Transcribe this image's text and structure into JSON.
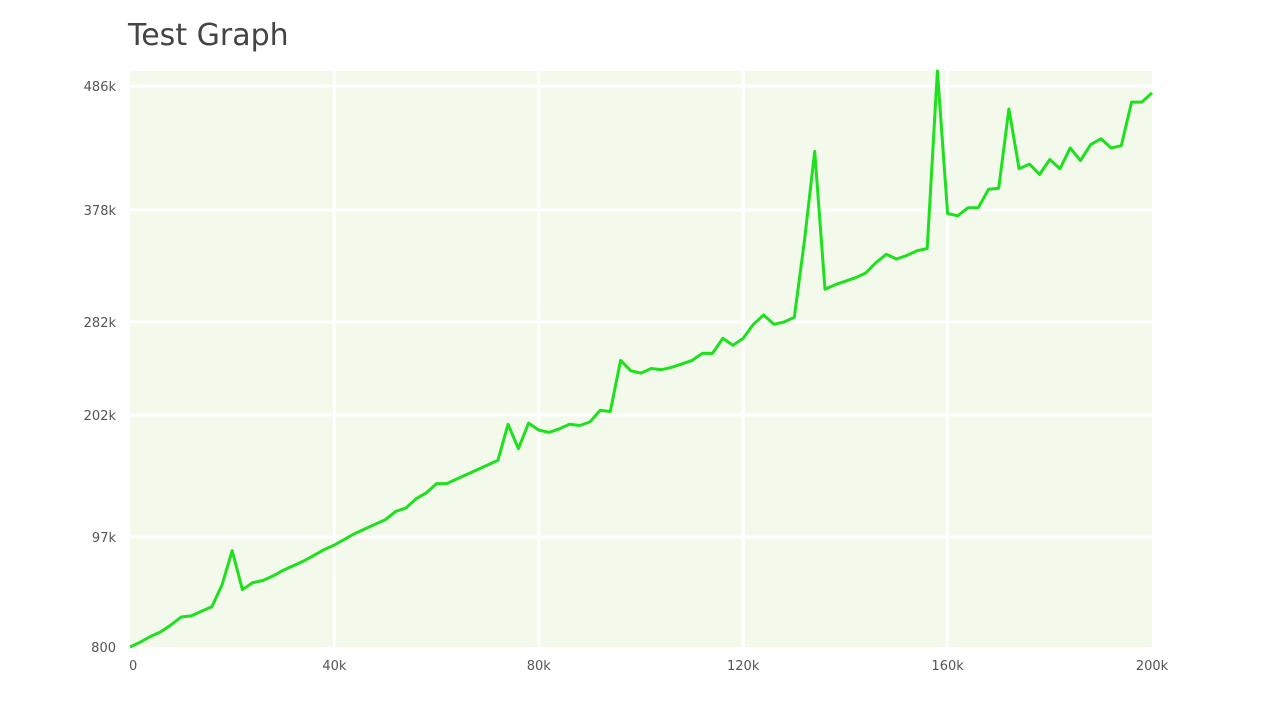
{
  "chart_data": {
    "type": "line",
    "title": "Test Graph",
    "xlabel": "",
    "ylabel": "",
    "xlim": [
      0,
      200000
    ],
    "ylim": [
      800,
      500000
    ],
    "x_ticks": [
      {
        "value": 0,
        "label": "0"
      },
      {
        "value": 40000,
        "label": "40k"
      },
      {
        "value": 80000,
        "label": "80k"
      },
      {
        "value": 120000,
        "label": "120k"
      },
      {
        "value": 160000,
        "label": "160k"
      },
      {
        "value": 200000,
        "label": "200k"
      }
    ],
    "y_ticks": [
      {
        "value": 800,
        "label": "800"
      },
      {
        "value": 97000,
        "label": "97k"
      },
      {
        "value": 202000,
        "label": "202k"
      },
      {
        "value": 282000,
        "label": "282k"
      },
      {
        "value": 378000,
        "label": "378k"
      },
      {
        "value": 486000,
        "label": "486k"
      }
    ],
    "grid": true,
    "colors": {
      "plot_background": "#f3faec",
      "grid": "#ffffff",
      "line": "#1ee01e"
    },
    "series": [
      {
        "x": [
          0,
          2000,
          4000,
          6000,
          8000,
          10000,
          12000,
          14000,
          16000,
          18000,
          20000,
          22000,
          24000,
          26000,
          28000,
          30000,
          32000,
          34000,
          36000,
          38000,
          40000,
          42000,
          44000,
          46000,
          48000,
          50000,
          52000,
          54000,
          56000,
          58000,
          60000,
          62000,
          64000,
          66000,
          68000,
          70000,
          72000,
          74000,
          76000,
          78000,
          80000,
          82000,
          84000,
          86000,
          88000,
          90000,
          92000,
          94000,
          96000,
          98000,
          100000,
          102000,
          104000,
          106000,
          108000,
          110000,
          112000,
          114000,
          116000,
          118000,
          120000,
          122000,
          124000,
          126000,
          128000,
          130000,
          132000,
          134000,
          136000,
          138000,
          140000,
          142000,
          144000,
          146000,
          148000,
          150000,
          152000,
          154000,
          156000,
          158000,
          160000,
          162000,
          164000,
          166000,
          168000,
          170000,
          172000,
          174000,
          176000,
          178000,
          180000,
          182000,
          184000,
          186000,
          188000,
          190000,
          192000,
          194000,
          196000,
          198000,
          200000
        ],
        "y": [
          800,
          5000,
          10000,
          14000,
          20000,
          27000,
          28000,
          32000,
          36000,
          55000,
          85000,
          51000,
          57000,
          59000,
          63000,
          68000,
          72000,
          76000,
          81000,
          86000,
          90000,
          95000,
          100000,
          104000,
          108000,
          112000,
          119000,
          122000,
          130000,
          135000,
          143000,
          143000,
          147000,
          151000,
          155000,
          159000,
          163000,
          194000,
          173000,
          195000,
          189000,
          187000,
          190000,
          194000,
          193000,
          196000,
          206000,
          205000,
          249000,
          240000,
          238000,
          242000,
          241000,
          243000,
          246000,
          249000,
          255000,
          255000,
          268000,
          262000,
          268000,
          280000,
          288000,
          280000,
          282000,
          286000,
          352000,
          429000,
          310000,
          314000,
          317000,
          320000,
          324000,
          333000,
          340000,
          336000,
          339000,
          343000,
          345000,
          506000,
          375000,
          373000,
          380000,
          380000,
          396000,
          397000,
          466000,
          414000,
          418000,
          409000,
          422000,
          414000,
          432000,
          421000,
          435000,
          440000,
          432000,
          434000,
          472000,
          472000,
          480000
        ]
      }
    ]
  }
}
